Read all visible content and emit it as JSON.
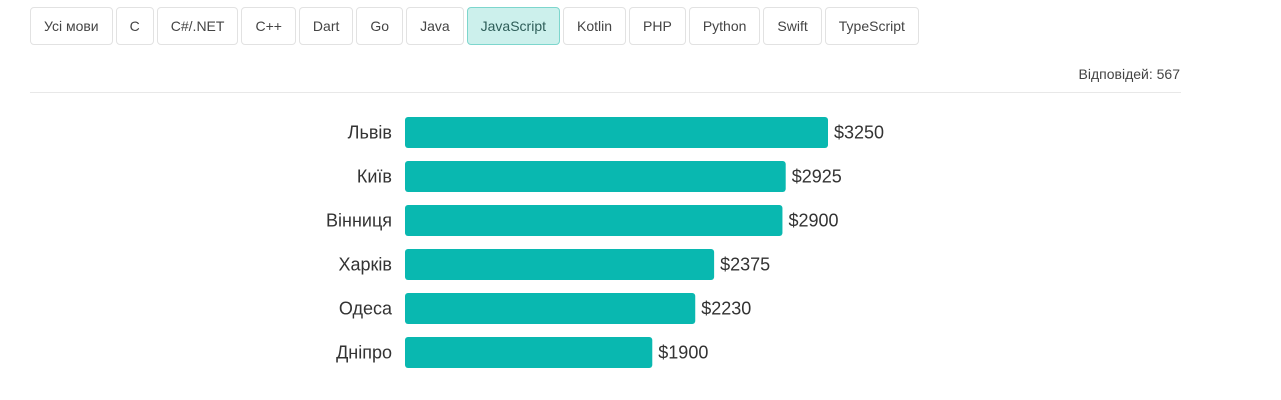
{
  "tabs": [
    {
      "label": "Усі мови",
      "active": false
    },
    {
      "label": "C",
      "active": false
    },
    {
      "label": "C#/.NET",
      "active": false
    },
    {
      "label": "C++",
      "active": false
    },
    {
      "label": "Dart",
      "active": false
    },
    {
      "label": "Go",
      "active": false
    },
    {
      "label": "Java",
      "active": false
    },
    {
      "label": "JavaScript",
      "active": true
    },
    {
      "label": "Kotlin",
      "active": false
    },
    {
      "label": "PHP",
      "active": false
    },
    {
      "label": "Python",
      "active": false
    },
    {
      "label": "Swift",
      "active": false
    },
    {
      "label": "TypeScript",
      "active": false
    }
  ],
  "responses_label": "Відповідей: 567",
  "colors": {
    "bar": "#09b8b0",
    "active_tab_bg": "#ccf0ec"
  },
  "chart_data": {
    "type": "bar",
    "orientation": "horizontal",
    "categories": [
      "Львів",
      "Київ",
      "Вінниця",
      "Харків",
      "Одеса",
      "Дніпро"
    ],
    "values": [
      3250,
      2925,
      2900,
      2375,
      2230,
      1900
    ],
    "value_labels": [
      "$3250",
      "$2925",
      "$2900",
      "$2375",
      "$2230",
      "$1900"
    ],
    "title": "",
    "xlabel": "",
    "ylabel": "",
    "xlim": [
      0,
      3250
    ],
    "grid": false
  }
}
